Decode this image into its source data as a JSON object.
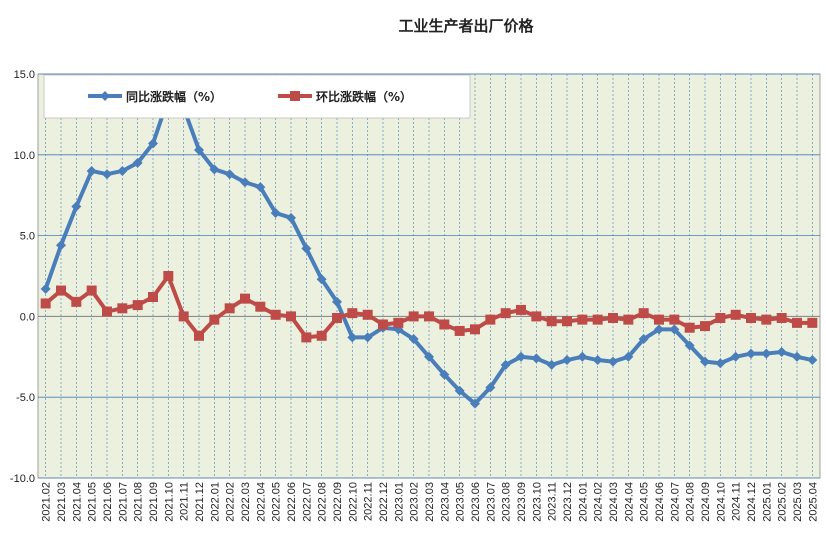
{
  "chart_data": {
    "type": "line",
    "title": "工业生产者出厂价格",
    "xlabel": "",
    "ylabel": "",
    "ylim": [
      -10,
      15
    ],
    "yticks": [
      "15.0",
      "10.0",
      "5.0",
      "0.0",
      "-5.0",
      "-10.0"
    ],
    "grid": true,
    "legend_position": "top-left",
    "categories": [
      "2021.02",
      "2021.03",
      "2021.04",
      "2021.05",
      "2021.06",
      "2021.07",
      "2021.08",
      "2021.09",
      "2021.10",
      "2021.11",
      "2021.12",
      "2022.01",
      "2022.02",
      "2022.03",
      "2022.04",
      "2022.05",
      "2022.06",
      "2022.07",
      "2022.08",
      "2022.09",
      "2022.10",
      "2022.11",
      "2022.12",
      "2023.01",
      "2023.02",
      "2023.03",
      "2023.04",
      "2023.05",
      "2023.06",
      "2023.07",
      "2023.08",
      "2023.09",
      "2023.10",
      "2023.11",
      "2023.12",
      "2024.01",
      "2024.02",
      "2024.03",
      "2024.04",
      "2024.05",
      "2024.06",
      "2024.07",
      "2024.08",
      "2024.09",
      "2024.10",
      "2024.11",
      "2024.12",
      "2025.01",
      "2025.02",
      "2025.03",
      "2025.04"
    ],
    "x_tick_labels": [
      "2021.02",
      "2021.03",
      "2021.04",
      "2021.05",
      "2021.06",
      "2021.07",
      "2021.08",
      "2021.09",
      "2021.10",
      "2021.11",
      "2021.12",
      "2022.01",
      "2022.02",
      "2022.03",
      "2022.04",
      "2022.05",
      "2022.06",
      "2022.07",
      "2022.08",
      "2022.09",
      "2022.10",
      "2022.11",
      "2022.12",
      "2023.01",
      "2023.02",
      "2023.03",
      "2023.04",
      "2023.05",
      "2023.06",
      "2023.07",
      "2023.08",
      "2023.09",
      "2023.10",
      "2023.11",
      "2023.12",
      "2024.01",
      "2024.02",
      "2024.03",
      "2024.04",
      "2024.05",
      "2024.06",
      "2024.07",
      "2024.08",
      "2024.09",
      "2024.10",
      "2024.11",
      "2024.12",
      "2025.01",
      "2025.02",
      "2025.03",
      "2025.04"
    ],
    "series": [
      {
        "name": "同比涨跌幅（%）",
        "color": "#4a7ebb",
        "marker": "diamond",
        "values": [
          1.7,
          4.4,
          6.8,
          9.0,
          8.8,
          9.0,
          9.5,
          10.7,
          13.5,
          12.9,
          10.3,
          9.1,
          8.8,
          8.3,
          8.0,
          6.4,
          6.1,
          4.2,
          2.3,
          0.9,
          -1.3,
          -1.3,
          -0.7,
          -0.8,
          -1.4,
          -2.5,
          -3.6,
          -4.6,
          -5.4,
          -4.4,
          -3.0,
          -2.5,
          -2.6,
          -3.0,
          -2.7,
          -2.5,
          -2.7,
          -2.8,
          -2.5,
          -1.4,
          -0.8,
          -0.8,
          -1.8,
          -2.8,
          -2.9,
          -2.5,
          -2.3,
          -2.3,
          -2.2,
          -2.5,
          -2.7
        ]
      },
      {
        "name": "环比涨跌幅（%）",
        "color": "#be4b48",
        "marker": "square",
        "values": [
          0.8,
          1.6,
          0.9,
          1.6,
          0.3,
          0.5,
          0.7,
          1.2,
          2.5,
          0.0,
          -1.2,
          -0.2,
          0.5,
          1.1,
          0.6,
          0.1,
          0.0,
          -1.3,
          -1.2,
          -0.1,
          0.2,
          0.1,
          -0.5,
          -0.4,
          0.0,
          0.0,
          -0.5,
          -0.9,
          -0.8,
          -0.2,
          0.2,
          0.4,
          0.0,
          -0.3,
          -0.3,
          -0.2,
          -0.2,
          -0.1,
          -0.2,
          0.2,
          -0.2,
          -0.2,
          -0.7,
          -0.6,
          -0.1,
          0.1,
          -0.1,
          -0.2,
          -0.1,
          -0.4,
          -0.4
        ]
      }
    ]
  },
  "colors": {
    "plot_bg": "#ebf1de",
    "grid_line": "#4a7ebb",
    "zero_line": "#7f7f7f"
  }
}
